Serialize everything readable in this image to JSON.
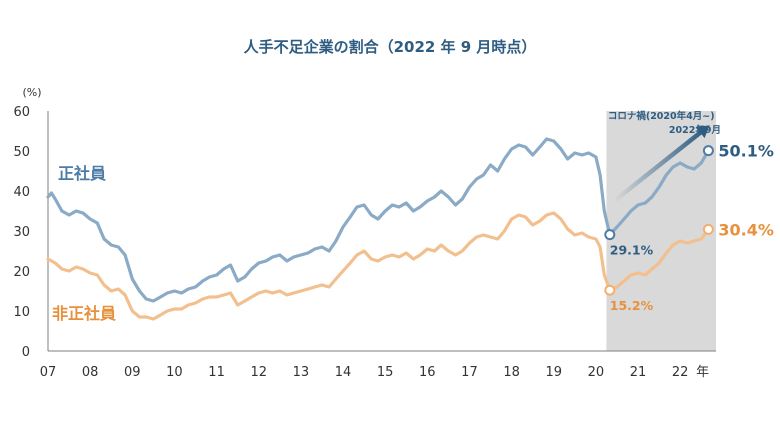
{
  "chart_data": {
    "type": "line",
    "title": "人手不足企業の割合（2022 年 9 月時点）",
    "y_unit": "(%)",
    "ylim": [
      0,
      60
    ],
    "y_ticks": [
      "0",
      "10",
      "20",
      "30",
      "40",
      "50",
      "60"
    ],
    "x_tick_labels": [
      "07",
      "08",
      "09",
      "10",
      "11",
      "12",
      "13",
      "14",
      "15",
      "16",
      "17",
      "18",
      "19",
      "20",
      "21",
      "22"
    ],
    "x_suffix": "年",
    "grid": false,
    "shaded_period": {
      "label": "コロナ禍(2020年4月~)",
      "start": 2020.25,
      "end": 2022.75
    },
    "series": [
      {
        "name": "正社員",
        "color": "#8aaac5",
        "points": [
          [
            2007.0,
            38.5
          ],
          [
            2007.08,
            39.5
          ],
          [
            2007.17,
            38.0
          ],
          [
            2007.33,
            35.0
          ],
          [
            2007.5,
            34.0
          ],
          [
            2007.67,
            35.0
          ],
          [
            2007.83,
            34.5
          ],
          [
            2008.0,
            33.0
          ],
          [
            2008.17,
            32.0
          ],
          [
            2008.33,
            28.0
          ],
          [
            2008.5,
            26.5
          ],
          [
            2008.67,
            26.0
          ],
          [
            2008.83,
            24.0
          ],
          [
            2009.0,
            18.0
          ],
          [
            2009.17,
            15.0
          ],
          [
            2009.33,
            13.0
          ],
          [
            2009.5,
            12.5
          ],
          [
            2009.67,
            13.5
          ],
          [
            2009.83,
            14.5
          ],
          [
            2010.0,
            15.0
          ],
          [
            2010.17,
            14.5
          ],
          [
            2010.33,
            15.5
          ],
          [
            2010.5,
            16.0
          ],
          [
            2010.67,
            17.5
          ],
          [
            2010.83,
            18.5
          ],
          [
            2011.0,
            19.0
          ],
          [
            2011.17,
            20.5
          ],
          [
            2011.33,
            21.5
          ],
          [
            2011.5,
            17.5
          ],
          [
            2011.67,
            18.5
          ],
          [
            2011.83,
            20.5
          ],
          [
            2012.0,
            22.0
          ],
          [
            2012.17,
            22.5
          ],
          [
            2012.33,
            23.5
          ],
          [
            2012.5,
            24.0
          ],
          [
            2012.67,
            22.5
          ],
          [
            2012.83,
            23.5
          ],
          [
            2013.0,
            24.0
          ],
          [
            2013.17,
            24.5
          ],
          [
            2013.33,
            25.5
          ],
          [
            2013.5,
            26.0
          ],
          [
            2013.67,
            25.0
          ],
          [
            2013.83,
            27.5
          ],
          [
            2014.0,
            31.0
          ],
          [
            2014.17,
            33.5
          ],
          [
            2014.33,
            36.0
          ],
          [
            2014.5,
            36.5
          ],
          [
            2014.67,
            34.0
          ],
          [
            2014.83,
            33.0
          ],
          [
            2015.0,
            35.0
          ],
          [
            2015.17,
            36.5
          ],
          [
            2015.33,
            36.0
          ],
          [
            2015.5,
            37.0
          ],
          [
            2015.67,
            35.0
          ],
          [
            2015.83,
            36.0
          ],
          [
            2016.0,
            37.5
          ],
          [
            2016.17,
            38.5
          ],
          [
            2016.33,
            40.0
          ],
          [
            2016.5,
            38.5
          ],
          [
            2016.67,
            36.5
          ],
          [
            2016.83,
            38.0
          ],
          [
            2017.0,
            41.0
          ],
          [
            2017.17,
            43.0
          ],
          [
            2017.33,
            44.0
          ],
          [
            2017.5,
            46.5
          ],
          [
            2017.67,
            45.0
          ],
          [
            2017.83,
            48.0
          ],
          [
            2018.0,
            50.5
          ],
          [
            2018.17,
            51.5
          ],
          [
            2018.33,
            51.0
          ],
          [
            2018.5,
            49.0
          ],
          [
            2018.67,
            51.0
          ],
          [
            2018.83,
            53.0
          ],
          [
            2019.0,
            52.5
          ],
          [
            2019.17,
            50.5
          ],
          [
            2019.33,
            48.0
          ],
          [
            2019.5,
            49.5
          ],
          [
            2019.67,
            49.0
          ],
          [
            2019.83,
            49.5
          ],
          [
            2020.0,
            48.5
          ],
          [
            2020.1,
            44.0
          ],
          [
            2020.2,
            35.0
          ],
          [
            2020.33,
            29.1
          ],
          [
            2020.5,
            31.0
          ],
          [
            2020.67,
            33.0
          ],
          [
            2020.83,
            35.0
          ],
          [
            2021.0,
            36.5
          ],
          [
            2021.17,
            37.0
          ],
          [
            2021.33,
            38.5
          ],
          [
            2021.5,
            41.0
          ],
          [
            2021.67,
            44.0
          ],
          [
            2021.83,
            46.0
          ],
          [
            2022.0,
            47.0
          ],
          [
            2022.17,
            46.0
          ],
          [
            2022.33,
            45.5
          ],
          [
            2022.5,
            47.0
          ],
          [
            2022.67,
            50.1
          ]
        ],
        "annotations": [
          {
            "x": 2020.33,
            "y": 29.1,
            "label": "29.1%"
          },
          {
            "x": 2022.67,
            "y": 50.1,
            "label": "50.1%"
          }
        ]
      },
      {
        "name": "非正社員",
        "color": "#f2c08e",
        "points": [
          [
            2007.0,
            23.0
          ],
          [
            2007.17,
            22.0
          ],
          [
            2007.33,
            20.5
          ],
          [
            2007.5,
            20.0
          ],
          [
            2007.67,
            21.0
          ],
          [
            2007.83,
            20.5
          ],
          [
            2008.0,
            19.5
          ],
          [
            2008.17,
            19.0
          ],
          [
            2008.33,
            16.5
          ],
          [
            2008.5,
            15.0
          ],
          [
            2008.67,
            15.5
          ],
          [
            2008.83,
            14.0
          ],
          [
            2009.0,
            10.0
          ],
          [
            2009.17,
            8.5
          ],
          [
            2009.33,
            8.5
          ],
          [
            2009.5,
            8.0
          ],
          [
            2009.67,
            9.0
          ],
          [
            2009.83,
            10.0
          ],
          [
            2010.0,
            10.5
          ],
          [
            2010.17,
            10.5
          ],
          [
            2010.33,
            11.5
          ],
          [
            2010.5,
            12.0
          ],
          [
            2010.67,
            13.0
          ],
          [
            2010.83,
            13.5
          ],
          [
            2011.0,
            13.5
          ],
          [
            2011.17,
            14.0
          ],
          [
            2011.33,
            14.5
          ],
          [
            2011.5,
            11.5
          ],
          [
            2011.67,
            12.5
          ],
          [
            2011.83,
            13.5
          ],
          [
            2012.0,
            14.5
          ],
          [
            2012.17,
            15.0
          ],
          [
            2012.33,
            14.5
          ],
          [
            2012.5,
            15.0
          ],
          [
            2012.67,
            14.0
          ],
          [
            2012.83,
            14.5
          ],
          [
            2013.0,
            15.0
          ],
          [
            2013.17,
            15.5
          ],
          [
            2013.33,
            16.0
          ],
          [
            2013.5,
            16.5
          ],
          [
            2013.67,
            16.0
          ],
          [
            2013.83,
            18.0
          ],
          [
            2014.0,
            20.0
          ],
          [
            2014.17,
            22.0
          ],
          [
            2014.33,
            24.0
          ],
          [
            2014.5,
            25.0
          ],
          [
            2014.67,
            23.0
          ],
          [
            2014.83,
            22.5
          ],
          [
            2015.0,
            23.5
          ],
          [
            2015.17,
            24.0
          ],
          [
            2015.33,
            23.5
          ],
          [
            2015.5,
            24.5
          ],
          [
            2015.67,
            23.0
          ],
          [
            2015.83,
            24.0
          ],
          [
            2016.0,
            25.5
          ],
          [
            2016.17,
            25.0
          ],
          [
            2016.33,
            26.5
          ],
          [
            2016.5,
            25.0
          ],
          [
            2016.67,
            24.0
          ],
          [
            2016.83,
            25.0
          ],
          [
            2017.0,
            27.0
          ],
          [
            2017.17,
            28.5
          ],
          [
            2017.33,
            29.0
          ],
          [
            2017.5,
            28.5
          ],
          [
            2017.67,
            28.0
          ],
          [
            2017.83,
            30.0
          ],
          [
            2018.0,
            33.0
          ],
          [
            2018.17,
            34.0
          ],
          [
            2018.33,
            33.5
          ],
          [
            2018.5,
            31.5
          ],
          [
            2018.67,
            32.5
          ],
          [
            2018.83,
            34.0
          ],
          [
            2019.0,
            34.5
          ],
          [
            2019.17,
            33.0
          ],
          [
            2019.33,
            30.5
          ],
          [
            2019.5,
            29.0
          ],
          [
            2019.67,
            29.5
          ],
          [
            2019.83,
            28.5
          ],
          [
            2020.0,
            28.0
          ],
          [
            2020.1,
            26.0
          ],
          [
            2020.2,
            19.0
          ],
          [
            2020.33,
            15.2
          ],
          [
            2020.5,
            16.0
          ],
          [
            2020.67,
            17.5
          ],
          [
            2020.83,
            19.0
          ],
          [
            2021.0,
            19.5
          ],
          [
            2021.17,
            19.0
          ],
          [
            2021.33,
            20.5
          ],
          [
            2021.5,
            22.0
          ],
          [
            2021.67,
            24.5
          ],
          [
            2021.83,
            26.5
          ],
          [
            2022.0,
            27.5
          ],
          [
            2022.17,
            27.0
          ],
          [
            2022.33,
            27.5
          ],
          [
            2022.5,
            28.0
          ],
          [
            2022.67,
            30.4
          ]
        ],
        "annotations": [
          {
            "x": 2020.33,
            "y": 15.2,
            "label": "15.2%"
          },
          {
            "x": 2022.67,
            "y": 30.4,
            "label": "30.4%"
          }
        ]
      }
    ],
    "arrow_label": "2022年9月"
  }
}
